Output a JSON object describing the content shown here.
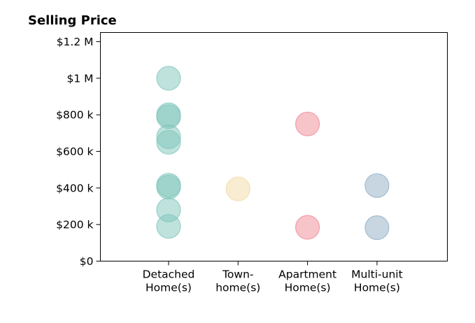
{
  "chart_data": {
    "type": "scatter",
    "title": "Selling Price",
    "xlabel": "",
    "ylabel": "",
    "categories": [
      [
        "Detached",
        "Home(s)"
      ],
      [
        "Town-",
        "home(s)"
      ],
      [
        "Apartment",
        "Home(s)"
      ],
      [
        "Multi-unit",
        "Home(s)"
      ]
    ],
    "ylim": [
      0,
      1250000
    ],
    "yticks": [
      0,
      200000,
      400000,
      600000,
      800000,
      1000000,
      1200000
    ],
    "ytick_labels": [
      "$0",
      "$200 k",
      "$400 k",
      "$600 k",
      "$800 k",
      "$1 M",
      "$1.2 M"
    ],
    "grid": false,
    "legend": "none",
    "series": [
      {
        "category": 0,
        "color": "#7fc6bc",
        "values": [
          1000000,
          800000,
          790000,
          680000,
          650000,
          415000,
          405000,
          280000,
          190000
        ]
      },
      {
        "category": 1,
        "color": "#f1d9a6",
        "values": [
          395000
        ]
      },
      {
        "category": 2,
        "color": "#f08a94",
        "values": [
          750000,
          185000
        ]
      },
      {
        "category": 3,
        "color": "#91adc4",
        "values": [
          413000,
          183000
        ]
      }
    ]
  }
}
